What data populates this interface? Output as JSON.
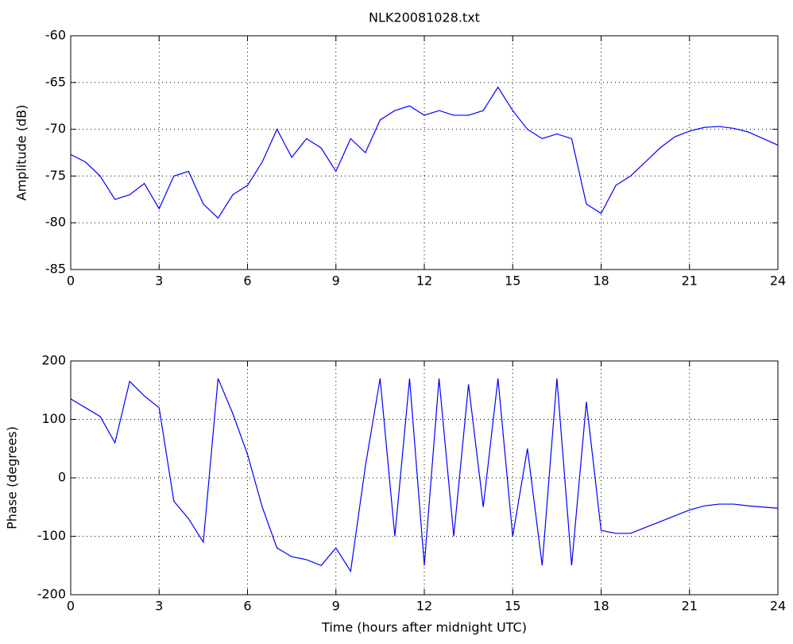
{
  "chart_data": [
    {
      "type": "line",
      "title": "NLK20081028.txt",
      "ylabel": "Amplitude (dB)",
      "color": "#0000ff",
      "x": [
        0,
        0.5,
        1,
        1.5,
        2,
        2.5,
        3,
        3.5,
        4,
        4.5,
        5,
        5.5,
        6,
        6.5,
        7,
        7.5,
        8,
        8.5,
        9,
        9.5,
        10,
        10.5,
        11,
        11.5,
        12,
        12.5,
        13,
        13.5,
        14,
        14.5,
        15,
        15.5,
        16,
        16.5,
        17,
        17.5,
        18,
        18.5,
        19,
        19.5,
        20,
        20.5,
        21,
        21.5,
        22,
        22.5,
        23,
        23.5,
        24
      ],
      "values": [
        -72.7,
        -73.5,
        -75,
        -77.5,
        -77,
        -75.8,
        -78.5,
        -75,
        -74.5,
        -78,
        -79.5,
        -77,
        -76,
        -73.5,
        -70,
        -73,
        -71,
        -72,
        -74.5,
        -71,
        -72.5,
        -69,
        -68,
        -67.5,
        -68.5,
        -68,
        -68.5,
        -68.5,
        -68,
        -65.5,
        -68,
        -70,
        -71,
        -70.5,
        -71,
        -78,
        -79,
        -76,
        -75,
        -73.5,
        -72,
        -70.8,
        -70.2,
        -69.8,
        -69.7,
        -69.9,
        -70.3,
        -71,
        -71.7
      ],
      "xlim": [
        0,
        24
      ],
      "xticks": [
        0,
        3,
        6,
        9,
        12,
        15,
        18,
        21,
        24
      ],
      "ylim": [
        -85,
        -60
      ],
      "yticks": [
        -85,
        -80,
        -75,
        -70,
        -65,
        -60
      ],
      "grid": true
    },
    {
      "type": "line",
      "xlabel": "Time (hours after midnight UTC)",
      "ylabel": "Phase (degrees)",
      "color": "#0000ff",
      "x": [
        0,
        0.5,
        1,
        1.5,
        2,
        2.5,
        3,
        3.5,
        4,
        4.5,
        5,
        5.5,
        6,
        6.5,
        7,
        7.5,
        8,
        8.5,
        9,
        9.5,
        10,
        10.5,
        11,
        11.5,
        12,
        12.5,
        13,
        13.5,
        14,
        14.5,
        15,
        15.5,
        16,
        16.5,
        17,
        17.5,
        18,
        18.5,
        19,
        19.5,
        20,
        20.5,
        21,
        21.5,
        22,
        22.5,
        23,
        23.5,
        24
      ],
      "values": [
        135,
        120,
        105,
        60,
        165,
        140,
        120,
        -40,
        -70,
        -110,
        170,
        110,
        40,
        -50,
        -120,
        -135,
        -140,
        -150,
        -120,
        -160,
        20,
        170,
        -100,
        170,
        -150,
        170,
        -100,
        160,
        -50,
        170,
        -100,
        50,
        -150,
        170,
        -150,
        130,
        -90,
        -95,
        -95,
        -85,
        -75,
        -65,
        -55,
        -48,
        -45,
        -45,
        -48,
        -50,
        -52
      ],
      "xlim": [
        0,
        24
      ],
      "xticks": [
        0,
        3,
        6,
        9,
        12,
        15,
        18,
        21,
        24
      ],
      "ylim": [
        -200,
        200
      ],
      "yticks": [
        -200,
        -100,
        0,
        100,
        200
      ],
      "grid": true
    }
  ]
}
